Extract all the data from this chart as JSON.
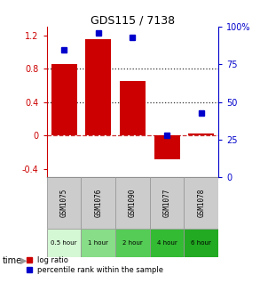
{
  "title": "GDS115 / 7138",
  "samples": [
    "GSM1075",
    "GSM1076",
    "GSM1090",
    "GSM1077",
    "GSM1078"
  ],
  "time_labels": [
    "0.5 hour",
    "1 hour",
    "2 hour",
    "4 hour",
    "6 hour"
  ],
  "time_colors": [
    "#d4f7d4",
    "#88dd88",
    "#55cc55",
    "#33bb33",
    "#22aa22"
  ],
  "log_ratios": [
    0.85,
    1.15,
    0.65,
    -0.28,
    0.02
  ],
  "percentile_ranks": [
    85,
    96,
    93,
    28,
    43
  ],
  "bar_color": "#cc0000",
  "dot_color": "#0000cc",
  "ylim_left": [
    -0.5,
    1.3
  ],
  "ylim_right": [
    0,
    100
  ],
  "yticks_left": [
    -0.4,
    0.0,
    0.4,
    0.8,
    1.2
  ],
  "yticks_right": [
    0,
    25,
    50,
    75,
    100
  ],
  "ytick_labels_right": [
    "0",
    "25",
    "50",
    "75",
    "100%"
  ],
  "background_color": "#ffffff"
}
